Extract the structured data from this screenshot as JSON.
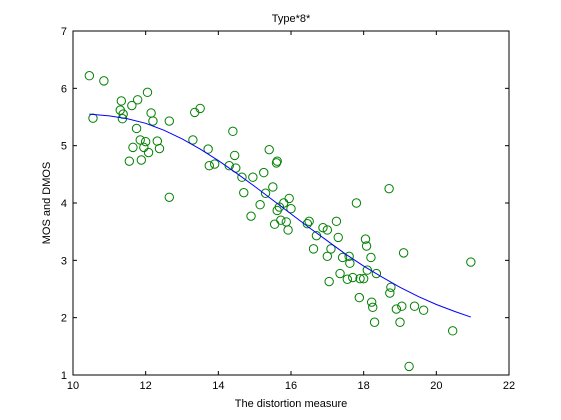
{
  "chart_data": {
    "type": "scatter",
    "title": "Type*8*",
    "xlabel": "The distortion measure",
    "ylabel": "MOS and DMOS",
    "xlim": [
      10,
      22
    ],
    "ylim": [
      1,
      7
    ],
    "xticks": [
      10,
      12,
      14,
      16,
      18,
      20,
      22
    ],
    "yticks": [
      1,
      2,
      3,
      4,
      5,
      6,
      7
    ],
    "grid": false,
    "series": [
      {
        "kind": "markers",
        "marker": "circle",
        "color": "#008000",
        "points": [
          [
            10.45,
            6.22
          ],
          [
            10.55,
            5.48
          ],
          [
            10.85,
            6.13
          ],
          [
            11.3,
            5.62
          ],
          [
            11.33,
            5.78
          ],
          [
            11.36,
            5.47
          ],
          [
            11.38,
            5.55
          ],
          [
            11.55,
            4.73
          ],
          [
            11.62,
            5.7
          ],
          [
            11.65,
            4.97
          ],
          [
            11.75,
            5.3
          ],
          [
            11.78,
            5.8
          ],
          [
            11.85,
            5.1
          ],
          [
            11.88,
            4.75
          ],
          [
            11.95,
            4.97
          ],
          [
            12.0,
            5.07
          ],
          [
            12.05,
            5.93
          ],
          [
            12.08,
            4.88
          ],
          [
            12.15,
            5.57
          ],
          [
            12.2,
            5.43
          ],
          [
            12.32,
            5.08
          ],
          [
            12.38,
            4.95
          ],
          [
            12.65,
            5.43
          ],
          [
            12.65,
            4.1
          ],
          [
            13.3,
            5.1
          ],
          [
            13.35,
            5.58
          ],
          [
            13.5,
            5.65
          ],
          [
            13.72,
            4.94
          ],
          [
            13.75,
            4.65
          ],
          [
            13.9,
            4.68
          ],
          [
            14.3,
            4.65
          ],
          [
            14.4,
            5.25
          ],
          [
            14.45,
            4.83
          ],
          [
            14.48,
            4.61
          ],
          [
            14.65,
            4.45
          ],
          [
            14.7,
            4.18
          ],
          [
            14.9,
            3.77
          ],
          [
            14.95,
            4.45
          ],
          [
            15.15,
            3.97
          ],
          [
            15.25,
            4.53
          ],
          [
            15.3,
            4.17
          ],
          [
            15.4,
            4.93
          ],
          [
            15.5,
            4.28
          ],
          [
            15.55,
            3.63
          ],
          [
            15.6,
            4.7
          ],
          [
            15.62,
            4.73
          ],
          [
            15.62,
            3.87
          ],
          [
            15.68,
            3.93
          ],
          [
            15.72,
            3.7
          ],
          [
            15.8,
            4.0
          ],
          [
            15.87,
            3.67
          ],
          [
            15.92,
            3.53
          ],
          [
            15.95,
            4.08
          ],
          [
            16.0,
            3.9
          ],
          [
            16.45,
            3.64
          ],
          [
            16.5,
            3.68
          ],
          [
            16.62,
            3.2
          ],
          [
            16.7,
            3.43
          ],
          [
            16.88,
            3.57
          ],
          [
            17.0,
            3.07
          ],
          [
            17.0,
            3.53
          ],
          [
            17.05,
            2.63
          ],
          [
            17.1,
            3.2
          ],
          [
            17.25,
            3.68
          ],
          [
            17.3,
            3.4
          ],
          [
            17.35,
            2.77
          ],
          [
            17.42,
            3.05
          ],
          [
            17.55,
            2.67
          ],
          [
            17.6,
            3.07
          ],
          [
            17.62,
            2.95
          ],
          [
            17.7,
            2.7
          ],
          [
            17.8,
            4.0
          ],
          [
            17.88,
            2.35
          ],
          [
            17.9,
            2.68
          ],
          [
            18.0,
            2.68
          ],
          [
            18.05,
            3.37
          ],
          [
            18.08,
            3.25
          ],
          [
            18.1,
            2.83
          ],
          [
            18.2,
            3.05
          ],
          [
            18.22,
            2.27
          ],
          [
            18.25,
            2.18
          ],
          [
            18.3,
            1.92
          ],
          [
            18.35,
            2.77
          ],
          [
            18.7,
            4.25
          ],
          [
            18.72,
            2.43
          ],
          [
            18.75,
            2.53
          ],
          [
            18.9,
            2.15
          ],
          [
            19.0,
            1.92
          ],
          [
            19.05,
            2.2
          ],
          [
            19.1,
            3.13
          ],
          [
            19.25,
            1.15
          ],
          [
            19.4,
            2.2
          ],
          [
            19.65,
            2.13
          ],
          [
            20.45,
            1.77
          ],
          [
            20.95,
            2.97
          ]
        ]
      },
      {
        "kind": "line",
        "color": "#0000ff",
        "points": [
          [
            10.45,
            5.55
          ],
          [
            11.0,
            5.52
          ],
          [
            11.5,
            5.47
          ],
          [
            12.0,
            5.39
          ],
          [
            12.5,
            5.27
          ],
          [
            13.0,
            5.12
          ],
          [
            13.5,
            4.94
          ],
          [
            14.0,
            4.74
          ],
          [
            14.5,
            4.52
          ],
          [
            15.0,
            4.29
          ],
          [
            15.5,
            4.05
          ],
          [
            16.0,
            3.81
          ],
          [
            16.5,
            3.57
          ],
          [
            17.0,
            3.34
          ],
          [
            17.5,
            3.11
          ],
          [
            18.0,
            2.9
          ],
          [
            18.5,
            2.71
          ],
          [
            19.0,
            2.53
          ],
          [
            19.5,
            2.37
          ],
          [
            20.0,
            2.23
          ],
          [
            20.5,
            2.11
          ],
          [
            20.95,
            2.01
          ]
        ]
      }
    ]
  }
}
